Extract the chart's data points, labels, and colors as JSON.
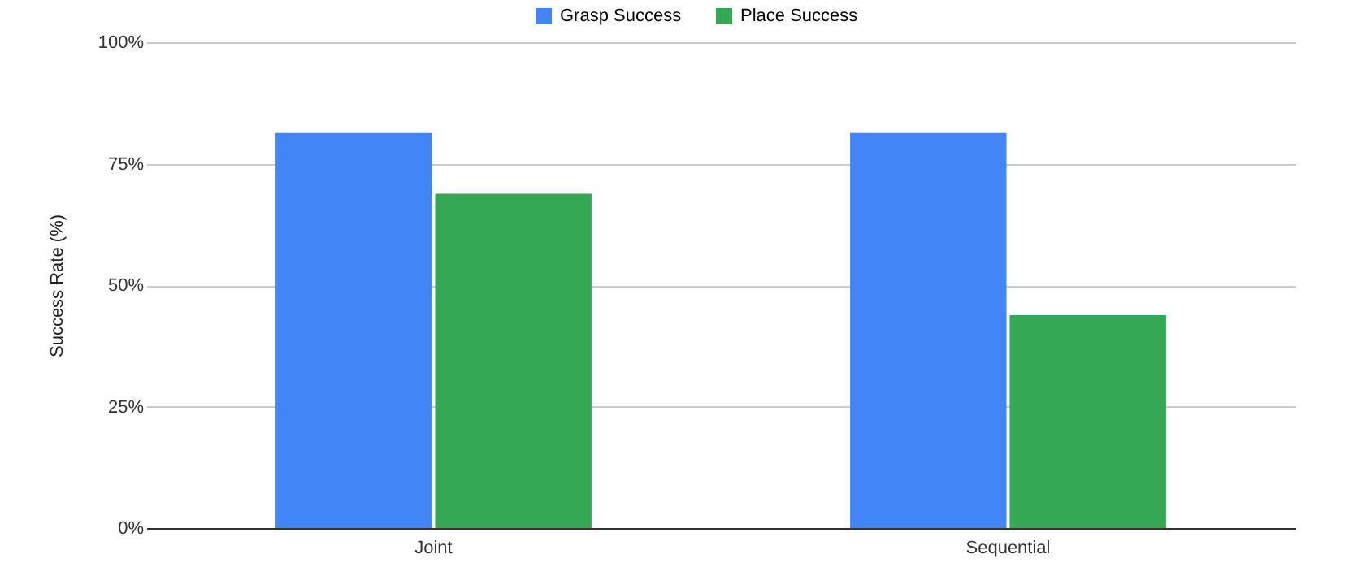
{
  "chart_data": {
    "type": "bar",
    "ylabel": "Success Rate (%)",
    "categories": [
      "Joint",
      "Sequential"
    ],
    "series": [
      {
        "name": "Grasp Success",
        "color": "#4285f4",
        "values": [
          81.3,
          81.3
        ]
      },
      {
        "name": "Place Success",
        "color": "#34a853",
        "values": [
          68.8,
          43.8
        ]
      }
    ],
    "ylim": [
      0,
      100
    ],
    "yticks": [
      {
        "value": 0,
        "label": "0%"
      },
      {
        "value": 25,
        "label": "25%"
      },
      {
        "value": 50,
        "label": "50%"
      },
      {
        "value": 75,
        "label": "75%"
      },
      {
        "value": 100,
        "label": "100%"
      }
    ],
    "grid": "y",
    "legend": "top"
  }
}
